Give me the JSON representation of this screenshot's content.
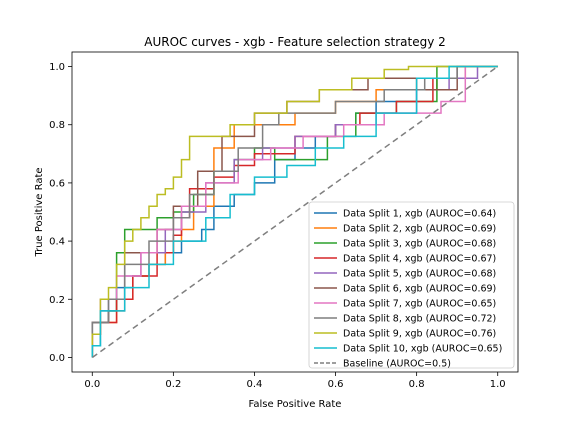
{
  "chart_data": {
    "type": "line",
    "title": "AUROC curves - xgb - Feature selection strategy 2",
    "xlabel": "False Positive Rate",
    "ylabel": "True Positive Rate",
    "xlim": [
      -0.05,
      1.05
    ],
    "ylim": [
      -0.05,
      1.05
    ],
    "xticks": [
      0.0,
      0.2,
      0.4,
      0.6,
      0.8,
      1.0
    ],
    "xtick_labels": [
      "0.0",
      "0.2",
      "0.4",
      "0.6",
      "0.8",
      "1.0"
    ],
    "yticks": [
      0.0,
      0.2,
      0.4,
      0.6,
      0.8,
      1.0
    ],
    "ytick_labels": [
      "0.0",
      "0.2",
      "0.4",
      "0.6",
      "0.8",
      "1.0"
    ],
    "grid": false,
    "legend_position": "lower-right",
    "series": [
      {
        "name": "Data Split 1, xgb (AUROC=0.64)",
        "color": "#1f77b4",
        "dash": "",
        "x": [
          0,
          0,
          0.02,
          0.02,
          0.06,
          0.06,
          0.1,
          0.1,
          0.14,
          0.14,
          0.18,
          0.18,
          0.22,
          0.22,
          0.27,
          0.27,
          0.3,
          0.3,
          0.35,
          0.35,
          0.4,
          0.4,
          0.45,
          0.45,
          0.5,
          0.5,
          0.55,
          0.55,
          0.6,
          0.6,
          0.65,
          0.65,
          0.7,
          0.7,
          0.8,
          0.8,
          0.85,
          0.85,
          0.9,
          0.9,
          1.0
        ],
        "y": [
          0,
          0.04,
          0.04,
          0.16,
          0.16,
          0.24,
          0.24,
          0.28,
          0.28,
          0.32,
          0.32,
          0.36,
          0.36,
          0.4,
          0.4,
          0.44,
          0.44,
          0.52,
          0.52,
          0.56,
          0.56,
          0.6,
          0.6,
          0.68,
          0.68,
          0.72,
          0.72,
          0.76,
          0.76,
          0.8,
          0.8,
          0.84,
          0.84,
          0.88,
          0.88,
          0.92,
          0.92,
          0.96,
          0.96,
          1.0,
          1.0
        ]
      },
      {
        "name": "Data Split 2, xgb (AUROC=0.69)",
        "color": "#ff7f0e",
        "dash": "",
        "x": [
          0,
          0,
          0.02,
          0.02,
          0.06,
          0.06,
          0.1,
          0.1,
          0.14,
          0.14,
          0.18,
          0.18,
          0.2,
          0.2,
          0.22,
          0.22,
          0.25,
          0.25,
          0.3,
          0.3,
          0.35,
          0.35,
          0.42,
          0.42,
          0.5,
          0.5,
          0.6,
          0.6,
          0.7,
          0.7,
          0.85,
          0.85,
          0.92,
          0.92,
          1.0
        ],
        "y": [
          0,
          0.08,
          0.08,
          0.12,
          0.12,
          0.2,
          0.2,
          0.28,
          0.28,
          0.32,
          0.32,
          0.36,
          0.36,
          0.4,
          0.4,
          0.44,
          0.44,
          0.52,
          0.52,
          0.72,
          0.72,
          0.8,
          0.8,
          0.8,
          0.8,
          0.84,
          0.84,
          0.88,
          0.88,
          0.92,
          0.92,
          0.96,
          0.96,
          1.0,
          1.0
        ]
      },
      {
        "name": "Data Split 3, xgb (AUROC=0.68)",
        "color": "#2ca02c",
        "dash": "",
        "x": [
          0,
          0,
          0.04,
          0.04,
          0.06,
          0.06,
          0.08,
          0.08,
          0.16,
          0.16,
          0.2,
          0.2,
          0.25,
          0.25,
          0.3,
          0.3,
          0.35,
          0.35,
          0.4,
          0.4,
          0.45,
          0.45,
          0.58,
          0.58,
          0.65,
          0.65,
          0.75,
          0.75,
          0.85,
          0.85,
          1.0
        ],
        "y": [
          0,
          0.12,
          0.12,
          0.16,
          0.16,
          0.36,
          0.36,
          0.44,
          0.44,
          0.48,
          0.48,
          0.5,
          0.5,
          0.56,
          0.56,
          0.64,
          0.64,
          0.68,
          0.68,
          0.72,
          0.72,
          0.68,
          0.68,
          0.76,
          0.76,
          0.84,
          0.84,
          0.88,
          0.88,
          1.0,
          1.0
        ]
      },
      {
        "name": "Data Split 4, xgb (AUROC=0.67)",
        "color": "#d62728",
        "dash": "",
        "x": [
          0,
          0,
          0.02,
          0.02,
          0.06,
          0.06,
          0.1,
          0.1,
          0.16,
          0.16,
          0.2,
          0.2,
          0.22,
          0.22,
          0.24,
          0.24,
          0.3,
          0.3,
          0.35,
          0.35,
          0.4,
          0.4,
          0.5,
          0.5,
          0.6,
          0.6,
          0.66,
          0.66,
          0.75,
          0.75,
          0.84,
          0.84,
          0.9,
          0.9,
          1.0
        ],
        "y": [
          0,
          0.08,
          0.08,
          0.12,
          0.12,
          0.2,
          0.2,
          0.28,
          0.28,
          0.36,
          0.36,
          0.42,
          0.42,
          0.48,
          0.48,
          0.58,
          0.58,
          0.62,
          0.62,
          0.66,
          0.66,
          0.7,
          0.7,
          0.76,
          0.76,
          0.8,
          0.8,
          0.84,
          0.84,
          0.88,
          0.88,
          0.96,
          0.96,
          1.0,
          1.0
        ]
      },
      {
        "name": "Data Split 5, xgb (AUROC=0.68)",
        "color": "#9467bd",
        "dash": "",
        "x": [
          0,
          0,
          0.04,
          0.04,
          0.08,
          0.08,
          0.12,
          0.12,
          0.18,
          0.18,
          0.22,
          0.22,
          0.28,
          0.28,
          0.35,
          0.35,
          0.42,
          0.42,
          0.5,
          0.5,
          0.6,
          0.6,
          0.7,
          0.7,
          0.8,
          0.8,
          0.88,
          0.88,
          0.95,
          0.95,
          1.0
        ],
        "y": [
          0,
          0.12,
          0.12,
          0.2,
          0.2,
          0.28,
          0.28,
          0.36,
          0.36,
          0.44,
          0.44,
          0.5,
          0.5,
          0.6,
          0.6,
          0.68,
          0.68,
          0.72,
          0.72,
          0.76,
          0.76,
          0.8,
          0.8,
          0.84,
          0.84,
          0.92,
          0.92,
          0.96,
          0.96,
          1.0,
          1.0
        ]
      },
      {
        "name": "Data Split 6, xgb (AUROC=0.69)",
        "color": "#8c564b",
        "dash": "",
        "x": [
          0,
          0,
          0.04,
          0.04,
          0.08,
          0.08,
          0.16,
          0.16,
          0.2,
          0.2,
          0.26,
          0.26,
          0.32,
          0.32,
          0.4,
          0.4,
          0.48,
          0.48,
          0.56,
          0.56,
          0.68,
          0.68,
          0.8,
          0.8,
          0.9,
          0.9,
          1.0
        ],
        "y": [
          0,
          0.12,
          0.12,
          0.16,
          0.16,
          0.36,
          0.36,
          0.44,
          0.44,
          0.52,
          0.52,
          0.64,
          0.64,
          0.76,
          0.76,
          0.84,
          0.84,
          0.88,
          0.88,
          0.92,
          0.92,
          0.96,
          0.96,
          0.92,
          0.92,
          1.0,
          1.0
        ]
      },
      {
        "name": "Data Split 7, xgb (AUROC=0.65)",
        "color": "#e377c2",
        "dash": "",
        "x": [
          0,
          0,
          0.02,
          0.02,
          0.06,
          0.06,
          0.12,
          0.12,
          0.16,
          0.16,
          0.22,
          0.22,
          0.28,
          0.28,
          0.36,
          0.36,
          0.44,
          0.44,
          0.52,
          0.52,
          0.62,
          0.62,
          0.72,
          0.72,
          0.86,
          0.86,
          0.92,
          0.92,
          1.0
        ],
        "y": [
          0,
          0.08,
          0.08,
          0.2,
          0.2,
          0.28,
          0.28,
          0.36,
          0.36,
          0.44,
          0.44,
          0.52,
          0.52,
          0.6,
          0.6,
          0.68,
          0.68,
          0.72,
          0.72,
          0.76,
          0.76,
          0.8,
          0.8,
          0.84,
          0.84,
          0.88,
          0.88,
          1.0,
          1.0
        ]
      },
      {
        "name": "Data Split 8, xgb (AUROC=0.72)",
        "color": "#7f7f7f",
        "dash": "",
        "x": [
          0,
          0,
          0.04,
          0.04,
          0.08,
          0.08,
          0.14,
          0.14,
          0.2,
          0.2,
          0.24,
          0.24,
          0.3,
          0.3,
          0.36,
          0.36,
          0.42,
          0.42,
          0.46,
          0.46,
          0.6,
          0.6,
          0.72,
          0.72,
          0.82,
          0.82,
          0.9,
          0.9,
          1.0
        ],
        "y": [
          0,
          0.12,
          0.12,
          0.2,
          0.2,
          0.32,
          0.32,
          0.4,
          0.4,
          0.48,
          0.48,
          0.56,
          0.56,
          0.64,
          0.64,
          0.72,
          0.72,
          0.8,
          0.8,
          0.84,
          0.84,
          0.88,
          0.88,
          0.92,
          0.92,
          0.96,
          0.96,
          1.0,
          1.0
        ]
      },
      {
        "name": "Data Split 9, xgb (AUROC=0.76)",
        "color": "#bcbd22",
        "dash": "",
        "x": [
          0,
          0,
          0.02,
          0.02,
          0.04,
          0.04,
          0.06,
          0.06,
          0.08,
          0.08,
          0.1,
          0.1,
          0.12,
          0.12,
          0.14,
          0.14,
          0.16,
          0.16,
          0.18,
          0.18,
          0.2,
          0.2,
          0.22,
          0.22,
          0.24,
          0.24,
          0.34,
          0.34,
          0.4,
          0.4,
          0.48,
          0.48,
          0.56,
          0.56,
          0.64,
          0.64,
          0.72,
          0.72,
          0.78,
          0.78,
          0.88,
          0.88,
          1.0
        ],
        "y": [
          0,
          0.08,
          0.08,
          0.2,
          0.2,
          0.24,
          0.24,
          0.32,
          0.32,
          0.4,
          0.4,
          0.44,
          0.44,
          0.48,
          0.48,
          0.52,
          0.52,
          0.56,
          0.56,
          0.58,
          0.58,
          0.62,
          0.62,
          0.68,
          0.68,
          0.76,
          0.76,
          0.8,
          0.8,
          0.84,
          0.84,
          0.88,
          0.88,
          0.92,
          0.92,
          0.96,
          0.96,
          0.99,
          0.99,
          1.0,
          1.0,
          1.0,
          1.0
        ]
      },
      {
        "name": "Data Split 10, xgb (AUROC=0.65)",
        "color": "#17becf",
        "dash": "",
        "x": [
          0,
          0,
          0.02,
          0.02,
          0.08,
          0.08,
          0.14,
          0.14,
          0.2,
          0.2,
          0.28,
          0.28,
          0.34,
          0.34,
          0.4,
          0.4,
          0.48,
          0.48,
          0.55,
          0.55,
          0.62,
          0.62,
          0.7,
          0.7,
          0.8,
          0.8,
          0.88,
          0.88,
          1.0
        ],
        "y": [
          0,
          0.04,
          0.04,
          0.16,
          0.16,
          0.24,
          0.24,
          0.32,
          0.32,
          0.4,
          0.4,
          0.48,
          0.48,
          0.56,
          0.56,
          0.62,
          0.62,
          0.66,
          0.66,
          0.72,
          0.72,
          0.76,
          0.76,
          0.84,
          0.84,
          0.96,
          0.96,
          1.0,
          1.0
        ]
      },
      {
        "name": "Baseline (AUROC=0.5)",
        "color": "#7f7f7f",
        "dash": "6,4",
        "x": [
          0,
          1
        ],
        "y": [
          0,
          1
        ]
      }
    ]
  }
}
